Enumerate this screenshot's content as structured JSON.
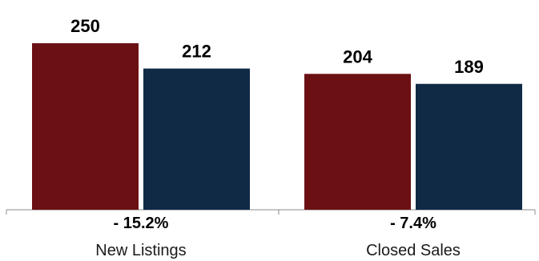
{
  "chart_data": {
    "type": "bar",
    "categories": [
      "New Listings",
      "Closed Sales"
    ],
    "series": [
      {
        "values": [
          250,
          204
        ],
        "color": "#6b1114"
      },
      {
        "values": [
          212,
          189
        ],
        "color": "#102a46"
      }
    ],
    "changes": [
      "- 15.2%",
      "- 7.4%"
    ],
    "ylim": [
      0,
      250
    ],
    "grid": false,
    "legend": "none"
  }
}
